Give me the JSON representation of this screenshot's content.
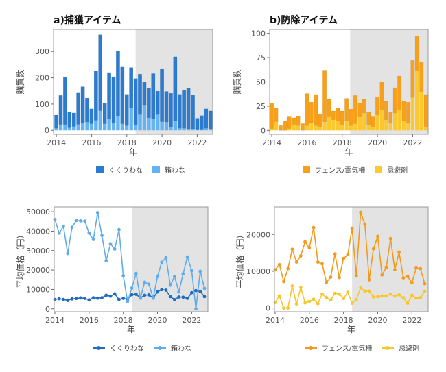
{
  "chart_data": [
    {
      "type": "bar",
      "stacked": true,
      "title": "a)捕獲アイテム",
      "xlabel": "年",
      "ylabel": "購買数",
      "xlim": [
        2013.84,
        2022.88
      ],
      "ylim": [
        -15,
        384
      ],
      "yticks": [
        0,
        100,
        200,
        300
      ],
      "xticks": [
        2014,
        2016,
        2018,
        2020,
        2022
      ],
      "shaded_region": [
        2018.5,
        2022.88
      ],
      "legend": "bottom",
      "x": [
        2014,
        2014.25,
        2014.5,
        2014.75,
        2015,
        2015.25,
        2015.5,
        2015.75,
        2016,
        2016.25,
        2016.5,
        2016.75,
        2017,
        2017.25,
        2017.5,
        2017.75,
        2018,
        2018.25,
        2018.5,
        2018.75,
        2019,
        2019.25,
        2019.5,
        2019.75,
        2020,
        2020.25,
        2020.5,
        2020.75,
        2021,
        2021.25,
        2021.5,
        2021.75,
        2022,
        2022.25,
        2022.5,
        2022.75
      ],
      "series": [
        {
          "name": "箱わな",
          "color": "#64b2f2",
          "values": [
            8,
            22,
            22,
            10,
            15,
            23,
            28,
            32,
            25,
            38,
            75,
            25,
            45,
            27,
            55,
            25,
            18,
            85,
            20,
            60,
            97,
            48,
            43,
            60,
            33,
            32,
            12,
            37,
            8,
            8,
            5,
            5,
            2,
            2,
            8,
            5
          ]
        },
        {
          "name": "くくりわな",
          "color": "#2b7bd1",
          "values": [
            50,
            111,
            181,
            61,
            51,
            119,
            138,
            91,
            57,
            188,
            289,
            79,
            175,
            177,
            247,
            216,
            119,
            154,
            177,
            154,
            88,
            112,
            173,
            89,
            202,
            116,
            129,
            243,
            129,
            145,
            156,
            130,
            44,
            54,
            74,
            69
          ]
        }
      ]
    },
    {
      "type": "bar",
      "stacked": true,
      "title": "b)防除アイテム",
      "xlabel": "年",
      "ylabel": "購買数",
      "xlim": [
        2013.88,
        2022.88
      ],
      "ylim": [
        -4,
        104
      ],
      "yticks": [
        0,
        25,
        50,
        75,
        100
      ],
      "xticks": [
        2014,
        2016,
        2018,
        2020,
        2022
      ],
      "shaded_region": [
        2018.45,
        2022.88
      ],
      "legend": "bottom",
      "x": [
        2014,
        2014.25,
        2014.5,
        2014.75,
        2015,
        2015.25,
        2015.5,
        2015.75,
        2016,
        2016.25,
        2016.5,
        2016.75,
        2017,
        2017.25,
        2017.5,
        2017.75,
        2018,
        2018.25,
        2018.5,
        2018.75,
        2019,
        2019.25,
        2019.5,
        2019.75,
        2020,
        2020.25,
        2020.5,
        2020.75,
        2021,
        2021.25,
        2021.5,
        2021.75,
        2022,
        2022.25,
        2022.5,
        2022.75
      ],
      "series": [
        {
          "name": "忌避剤",
          "color": "#fcc830",
          "values": [
            2,
            9,
            0,
            0,
            2,
            6,
            5,
            0,
            5,
            8,
            5,
            4,
            9,
            14,
            11,
            10,
            6,
            10,
            5,
            7,
            14,
            18,
            6,
            4,
            16,
            21,
            11,
            8,
            18,
            21,
            10,
            8,
            34,
            62,
            40,
            4
          ]
        },
        {
          "name": "フェンス/電気柵",
          "color": "#f8a01a",
          "values": [
            26,
            14,
            5,
            10,
            12,
            7,
            10,
            7,
            33,
            21,
            32,
            13,
            53,
            18,
            9,
            13,
            14,
            23,
            17,
            29,
            14,
            14,
            13,
            10,
            18,
            29,
            19,
            11,
            26,
            35,
            20,
            21,
            38,
            35,
            30,
            33
          ]
        }
      ]
    },
    {
      "type": "line",
      "title": "",
      "xlabel": "年",
      "ylabel": "平均価格（円）",
      "xlim": [
        2013.96,
        2022.95
      ],
      "ylim": [
        -1500,
        52500
      ],
      "yticks": [
        0,
        10000,
        20000,
        30000,
        40000,
        50000
      ],
      "xticks": [
        2014,
        2016,
        2018,
        2020,
        2022
      ],
      "shaded_region": [
        2018.5,
        2022.95
      ],
      "legend": "bottom",
      "x": [
        2014,
        2014.25,
        2014.5,
        2014.75,
        2015,
        2015.25,
        2015.5,
        2015.75,
        2016,
        2016.25,
        2016.5,
        2016.75,
        2017,
        2017.25,
        2017.5,
        2017.75,
        2018,
        2018.25,
        2018.5,
        2018.75,
        2019,
        2019.25,
        2019.5,
        2019.75,
        2020,
        2020.25,
        2020.5,
        2020.75,
        2021,
        2021.25,
        2021.5,
        2021.75,
        2022,
        2022.25,
        2022.5,
        2022.75
      ],
      "series": [
        {
          "name": "くくりわな",
          "color": "#1f6cc0",
          "values": [
            4800,
            5200,
            4800,
            4300,
            5100,
            5300,
            5600,
            5400,
            4600,
            5700,
            5500,
            5700,
            7000,
            6500,
            7700,
            4800,
            5400,
            4900,
            7300,
            7500,
            5600,
            7000,
            7200,
            5600,
            8700,
            9900,
            9600,
            6300,
            4700,
            6100,
            6000,
            5400,
            8300,
            9400,
            8900,
            6300
          ]
        },
        {
          "name": "箱わな",
          "color": "#5eacea",
          "values": [
            46000,
            39000,
            42500,
            28500,
            42000,
            45500,
            45300,
            45200,
            39000,
            35700,
            49500,
            37800,
            24800,
            33500,
            30800,
            40800,
            17000,
            3800,
            10700,
            18200,
            5500,
            13700,
            12700,
            5500,
            16700,
            24000,
            26300,
            12200,
            16700,
            8700,
            18000,
            26700,
            19700,
            0,
            19300,
            10500
          ]
        }
      ]
    },
    {
      "type": "line",
      "title": "",
      "xlabel": "年",
      "ylabel": "平均価格（円）",
      "xlim": [
        2013.96,
        2022.95
      ],
      "ylim": [
        -1000,
        27500
      ],
      "yticks": [
        0,
        10000,
        20000
      ],
      "xticks": [
        2014,
        2016,
        2018,
        2020,
        2022
      ],
      "shaded_region": [
        2018.5,
        2022.95
      ],
      "legend": "bottom",
      "x": [
        2014,
        2014.25,
        2014.5,
        2014.75,
        2015,
        2015.25,
        2015.5,
        2015.75,
        2016,
        2016.25,
        2016.5,
        2016.75,
        2017,
        2017.25,
        2017.5,
        2017.75,
        2018,
        2018.25,
        2018.5,
        2018.75,
        2019,
        2019.25,
        2019.5,
        2019.75,
        2020,
        2020.25,
        2020.5,
        2020.75,
        2021,
        2021.25,
        2021.5,
        2021.75,
        2022,
        2022.25,
        2022.5,
        2022.75
      ],
      "series": [
        {
          "name": "フェンス/電気柵",
          "color": "#f29a1c",
          "values": [
            10400,
            11800,
            7200,
            10700,
            16000,
            12500,
            14200,
            18000,
            16400,
            21900,
            12500,
            12000,
            7000,
            8400,
            14700,
            8300,
            13500,
            14500,
            21700,
            8800,
            26000,
            22800,
            7700,
            16100,
            19500,
            9000,
            11000,
            18900,
            10400,
            15200,
            8200,
            8600,
            6900,
            10900,
            10700,
            6600
          ]
        },
        {
          "name": "忌避剤",
          "color": "#f9c62a",
          "values": [
            1500,
            3300,
            0,
            0,
            6000,
            1100,
            5600,
            1400,
            1800,
            2400,
            1200,
            3800,
            2900,
            2200,
            4000,
            3800,
            2600,
            4300,
            1300,
            2300,
            5500,
            4600,
            4600,
            3000,
            3100,
            3300,
            3300,
            3800,
            3300,
            3600,
            2800,
            1300,
            3500,
            2700,
            2800,
            4600
          ]
        }
      ]
    }
  ]
}
